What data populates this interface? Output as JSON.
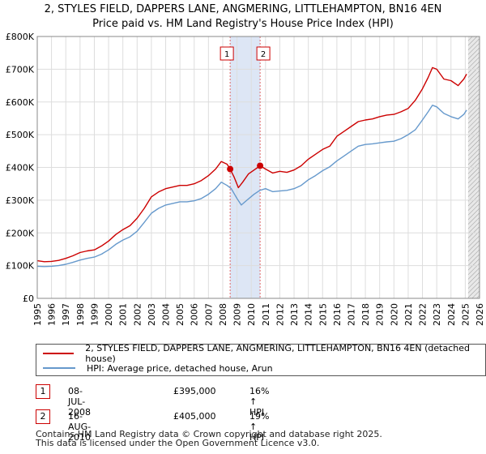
{
  "title_line1": "2, STYLES FIELD, DAPPERS LANE, ANGMERING, LITTLEHAMPTON, BN16 4EN",
  "title_line2": "Price paid vs. HM Land Registry's House Price Index (HPI)",
  "colors": {
    "property": "#cc0000",
    "hpi": "#6699cc",
    "band": "#dde6f5",
    "grid": "#dddddd",
    "future": "#e8e8e8"
  },
  "chart_data": {
    "type": "line",
    "x_unit": "year",
    "xlim": [
      1995,
      2026
    ],
    "ylim": [
      0,
      800000
    ],
    "xticks": [
      "1995",
      "1996",
      "1997",
      "1998",
      "1999",
      "2000",
      "2001",
      "2002",
      "2003",
      "2004",
      "2005",
      "2006",
      "2007",
      "2008",
      "2009",
      "2010",
      "2011",
      "2012",
      "2013",
      "2014",
      "2015",
      "2016",
      "2017",
      "2018",
      "2019",
      "2020",
      "2021",
      "2022",
      "2023",
      "2024",
      "2025",
      "2026"
    ],
    "ytick_values": [
      0,
      100000,
      200000,
      300000,
      400000,
      500000,
      600000,
      700000,
      800000
    ],
    "ytick_labels": [
      "£0",
      "£100K",
      "£200K",
      "£300K",
      "£400K",
      "£500K",
      "£600K",
      "£700K",
      "£800K"
    ],
    "shaded_band": [
      2008.52,
      2010.62
    ],
    "future_hatch_start": 2025.2,
    "series": [
      {
        "name": "2, STYLES FIELD, DAPPERS LANE, ANGMERING, LITTLEHAMPTON, BN16 4EN (detached house)",
        "color": "#cc0000",
        "x": [
          1995.0,
          1995.5,
          1996.0,
          1996.5,
          1997.0,
          1997.5,
          1998.0,
          1998.5,
          1999.0,
          1999.5,
          2000.0,
          2000.5,
          2001.0,
          2001.5,
          2002.0,
          2002.5,
          2003.0,
          2003.5,
          2004.0,
          2004.5,
          2005.0,
          2005.5,
          2006.0,
          2006.5,
          2007.0,
          2007.5,
          2007.9,
          2008.3,
          2008.52,
          2008.8,
          2009.1,
          2009.4,
          2009.8,
          2010.2,
          2010.62,
          2011.0,
          2011.5,
          2012.0,
          2012.5,
          2013.0,
          2013.5,
          2014.0,
          2014.5,
          2015.0,
          2015.5,
          2016.0,
          2016.5,
          2017.0,
          2017.5,
          2018.0,
          2018.5,
          2019.0,
          2019.5,
          2020.0,
          2020.5,
          2021.0,
          2021.5,
          2022.0,
          2022.4,
          2022.7,
          2023.0,
          2023.5,
          2024.0,
          2024.5,
          2024.9,
          2025.1
        ],
        "y": [
          115000,
          112000,
          113000,
          116000,
          122000,
          130000,
          140000,
          145000,
          148000,
          160000,
          175000,
          195000,
          210000,
          222000,
          245000,
          275000,
          310000,
          325000,
          335000,
          340000,
          345000,
          345000,
          350000,
          360000,
          375000,
          395000,
          418000,
          410000,
          395000,
          370000,
          338000,
          355000,
          380000,
          392000,
          405000,
          395000,
          383000,
          388000,
          385000,
          392000,
          405000,
          425000,
          440000,
          455000,
          465000,
          495000,
          510000,
          525000,
          540000,
          545000,
          548000,
          555000,
          560000,
          562000,
          570000,
          580000,
          605000,
          640000,
          675000,
          705000,
          700000,
          670000,
          665000,
          650000,
          670000,
          685000
        ]
      },
      {
        "name": "HPI: Average price, detached house, Arun",
        "color": "#6699cc",
        "x": [
          1995.0,
          1995.5,
          1996.0,
          1996.5,
          1997.0,
          1997.5,
          1998.0,
          1998.5,
          1999.0,
          1999.5,
          2000.0,
          2000.5,
          2001.0,
          2001.5,
          2002.0,
          2002.5,
          2003.0,
          2003.5,
          2004.0,
          2004.5,
          2005.0,
          2005.5,
          2006.0,
          2006.5,
          2007.0,
          2007.5,
          2007.9,
          2008.3,
          2008.6,
          2009.0,
          2009.3,
          2009.7,
          2010.2,
          2010.6,
          2011.0,
          2011.5,
          2012.0,
          2012.5,
          2013.0,
          2013.5,
          2014.0,
          2014.5,
          2015.0,
          2015.5,
          2016.0,
          2016.5,
          2017.0,
          2017.5,
          2018.0,
          2018.5,
          2019.0,
          2019.5,
          2020.0,
          2020.5,
          2021.0,
          2021.5,
          2022.0,
          2022.4,
          2022.7,
          2023.0,
          2023.5,
          2024.0,
          2024.5,
          2024.9,
          2025.1
        ],
        "y": [
          98000,
          97000,
          98000,
          100000,
          104000,
          110000,
          117000,
          122000,
          126000,
          135000,
          148000,
          165000,
          178000,
          188000,
          205000,
          232000,
          260000,
          275000,
          285000,
          290000,
          295000,
          295000,
          298000,
          305000,
          318000,
          335000,
          355000,
          345000,
          335000,
          305000,
          285000,
          300000,
          318000,
          330000,
          335000,
          326000,
          328000,
          330000,
          335000,
          345000,
          362000,
          375000,
          390000,
          402000,
          420000,
          435000,
          450000,
          465000,
          470000,
          472000,
          475000,
          478000,
          480000,
          488000,
          500000,
          515000,
          545000,
          570000,
          590000,
          585000,
          565000,
          555000,
          548000,
          562000,
          575000
        ]
      }
    ],
    "sales": [
      {
        "label": "1",
        "x": 2008.52,
        "y": 395000
      },
      {
        "label": "2",
        "x": 2010.62,
        "y": 405000
      }
    ]
  },
  "legend": {
    "property_label": "2, STYLES FIELD, DAPPERS LANE, ANGMERING, LITTLEHAMPTON, BN16 4EN (detached house)",
    "hpi_label": "HPI: Average price, detached house, Arun"
  },
  "annotations": [
    {
      "num": "1",
      "date": "08-JUL-2008",
      "price": "£395,000",
      "hpi": "16% ↑ HPI"
    },
    {
      "num": "2",
      "date": "16-AUG-2010",
      "price": "£405,000",
      "hpi": "19% ↑ HPI"
    }
  ],
  "footer": {
    "line1": "Contains HM Land Registry data © Crown copyright and database right 2025.",
    "line2": "This data is licensed under the Open Government Licence v3.0."
  }
}
